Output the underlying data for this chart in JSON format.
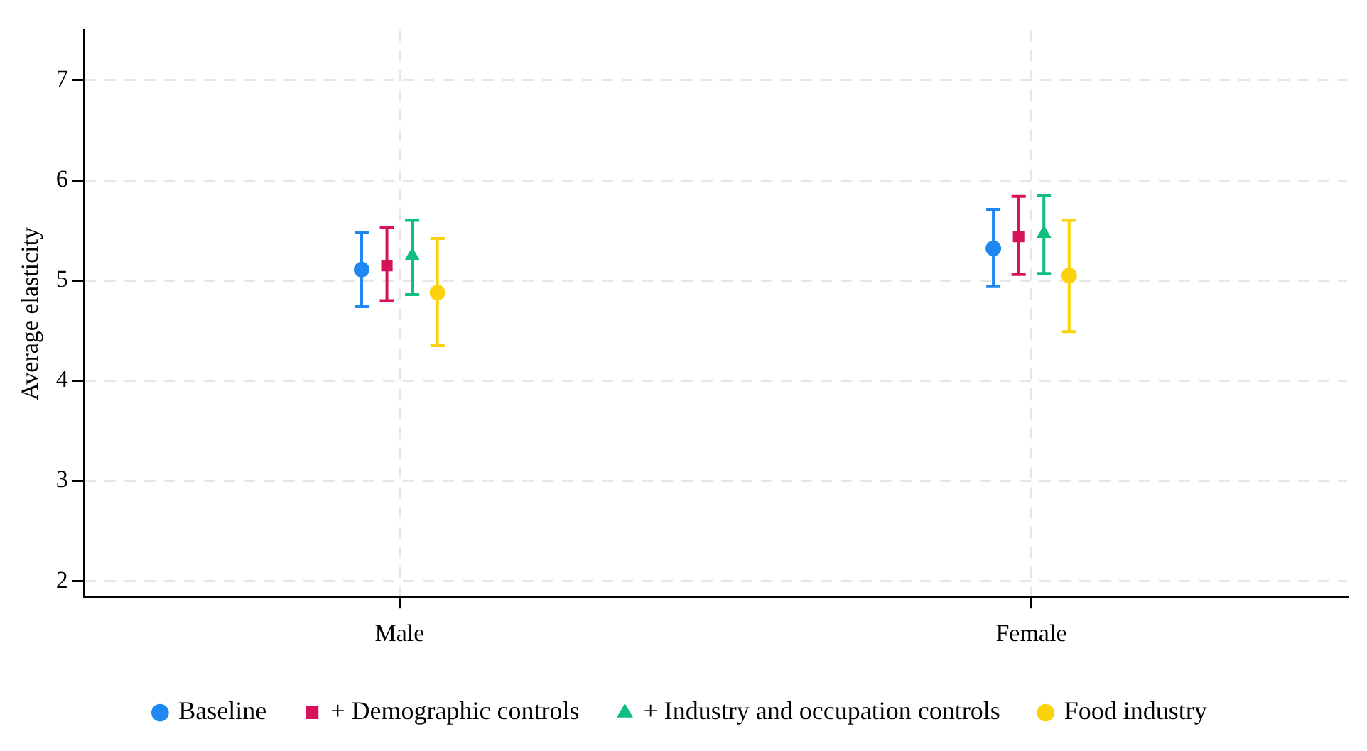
{
  "chart_data": {
    "type": "scatter",
    "ylabel": "Average elasticity",
    "categories": [
      "Male",
      "Female"
    ],
    "ylim": [
      1.84,
      7.5
    ],
    "yticks": [
      2,
      3,
      4,
      5,
      6,
      7
    ],
    "grid": true,
    "legend": "bottom",
    "series": [
      {
        "name": "Baseline",
        "color": "#1f87f0",
        "marker": "circle",
        "values": [
          5.11,
          5.32
        ],
        "errors": [
          [
            4.74,
            5.48
          ],
          [
            4.94,
            5.71
          ]
        ]
      },
      {
        "name": "+ Demographic controls",
        "color": "#d6135a",
        "marker": "square",
        "values": [
          5.15,
          5.44
        ],
        "errors": [
          [
            4.8,
            5.53
          ],
          [
            5.06,
            5.84
          ]
        ]
      },
      {
        "name": "+ Industry and occupation controls",
        "color": "#10be7e",
        "marker": "triangle",
        "values": [
          5.25,
          5.47
        ],
        "errors": [
          [
            4.86,
            5.6
          ],
          [
            5.07,
            5.85
          ]
        ]
      },
      {
        "name": "Food industry",
        "color": "#fcd20c",
        "marker": "circle",
        "values": [
          4.88,
          5.05
        ],
        "errors": [
          [
            4.35,
            5.42
          ],
          [
            4.49,
            5.6
          ]
        ]
      }
    ]
  }
}
